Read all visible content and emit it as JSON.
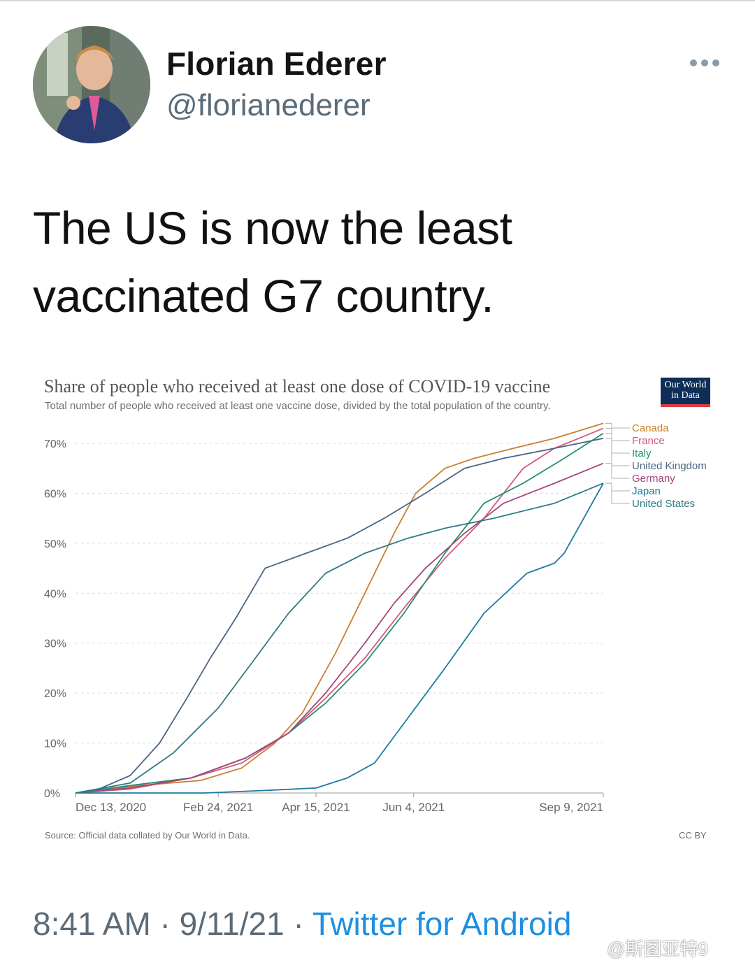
{
  "tweet": {
    "display_name": "Florian Ederer",
    "handle": "@florianederer",
    "text": "The US is now the least vaccinated G7 country.",
    "more_icon": "ellipsis-icon",
    "timestamp": "8:41 AM · 9/11/21 · ",
    "source": "Twitter for Android"
  },
  "watermark": "@斯图亚特9",
  "owid_logo": {
    "line1": "Our World",
    "line2": "in Data"
  },
  "chart_data": {
    "type": "line",
    "title": "Share of people who received at least one dose of COVID-19 vaccine",
    "subtitle": "Total number of people who received at least one vaccine dose, divided by the total population of the country.",
    "source": "Source: Official data collated by Our World in Data.",
    "license": "CC BY",
    "y_ticks": [
      "0%",
      "10%",
      "20%",
      "30%",
      "40%",
      "50%",
      "60%",
      "70%"
    ],
    "ylim": [
      0,
      70
    ],
    "xlim": [
      "2020-12-13",
      "2021-09-09"
    ],
    "x_ticks": [
      {
        "date": "2020-12-13",
        "label": "Dec 13, 2020"
      },
      {
        "date": "2021-02-24",
        "label": "Feb 24, 2021"
      },
      {
        "date": "2021-04-15",
        "label": "Apr 15, 2021"
      },
      {
        "date": "2021-06-04",
        "label": "Jun 4, 2021"
      },
      {
        "date": "2021-09-09",
        "label": "Sep 9, 2021"
      }
    ],
    "grid": true,
    "legend": "right",
    "series": [
      {
        "name": "Canada",
        "color": "#c87f2d",
        "x": [
          "2020-12-13",
          "2021-01-15",
          "2021-02-15",
          "2021-03-08",
          "2021-03-25",
          "2021-04-08",
          "2021-04-25",
          "2021-05-10",
          "2021-05-25",
          "2021-06-05",
          "2021-06-20",
          "2021-07-05",
          "2021-07-25",
          "2021-08-15",
          "2021-09-09"
        ],
        "y": [
          0,
          1.5,
          2.5,
          5,
          10,
          16,
          28,
          40,
          52,
          60,
          65,
          67,
          69,
          71,
          74
        ]
      },
      {
        "name": "France",
        "color": "#d35b7d",
        "x": [
          "2020-12-13",
          "2021-01-10",
          "2021-02-10",
          "2021-03-08",
          "2021-04-01",
          "2021-04-20",
          "2021-05-10",
          "2021-05-30",
          "2021-06-20",
          "2021-07-10",
          "2021-07-30",
          "2021-08-15",
          "2021-09-09"
        ],
        "y": [
          0,
          0.8,
          3,
          6,
          12,
          19,
          27,
          37,
          47,
          55,
          65,
          69,
          73
        ]
      },
      {
        "name": "Italy",
        "color": "#25906e",
        "x": [
          "2020-12-13",
          "2021-01-10",
          "2021-02-10",
          "2021-03-10",
          "2021-04-01",
          "2021-04-20",
          "2021-05-10",
          "2021-05-30",
          "2021-06-20",
          "2021-07-10",
          "2021-07-30",
          "2021-08-20",
          "2021-09-09"
        ],
        "y": [
          0,
          1.5,
          3,
          7,
          12,
          18,
          26,
          36,
          48,
          58,
          62,
          67,
          72
        ]
      },
      {
        "name": "United Kingdom",
        "color": "#4b6585",
        "x": [
          "2020-12-13",
          "2020-12-25",
          "2021-01-10",
          "2021-01-25",
          "2021-02-08",
          "2021-02-20",
          "2021-03-05",
          "2021-03-20",
          "2021-04-10",
          "2021-05-01",
          "2021-05-20",
          "2021-06-10",
          "2021-06-30",
          "2021-07-20",
          "2021-08-15",
          "2021-09-09"
        ],
        "y": [
          0,
          0.8,
          3.5,
          10,
          19,
          27,
          35,
          45,
          48,
          51,
          55,
          60,
          65,
          67,
          69,
          71
        ]
      },
      {
        "name": "Germany",
        "color": "#a2467e",
        "x": [
          "2020-12-13",
          "2021-01-10",
          "2021-02-10",
          "2021-03-10",
          "2021-04-01",
          "2021-04-20",
          "2021-05-10",
          "2021-05-25",
          "2021-06-10",
          "2021-06-30",
          "2021-07-20",
          "2021-08-15",
          "2021-09-09"
        ],
        "y": [
          0,
          1,
          3,
          7,
          12,
          20,
          30,
          38,
          45,
          52,
          58,
          62,
          66
        ]
      },
      {
        "name": "Japan",
        "color": "#1b7b9e",
        "x": [
          "2020-12-13",
          "2021-02-17",
          "2021-03-20",
          "2021-04-15",
          "2021-05-01",
          "2021-05-15",
          "2021-06-01",
          "2021-06-20",
          "2021-07-10",
          "2021-08-01",
          "2021-08-15",
          "2021-08-20",
          "2021-09-09"
        ],
        "y": [
          0,
          0,
          0.5,
          1,
          3,
          6,
          15,
          25,
          36,
          44,
          46,
          48,
          62
        ]
      },
      {
        "name": "United States",
        "color": "#2f7a82",
        "x": [
          "2020-12-13",
          "2021-01-10",
          "2021-02-01",
          "2021-02-24",
          "2021-03-15",
          "2021-04-01",
          "2021-04-20",
          "2021-05-10",
          "2021-06-01",
          "2021-06-20",
          "2021-07-15",
          "2021-08-15",
          "2021-09-09"
        ],
        "y": [
          0,
          2,
          8,
          17,
          27,
          36,
          44,
          48,
          51,
          53,
          55,
          58,
          62
        ]
      }
    ]
  }
}
